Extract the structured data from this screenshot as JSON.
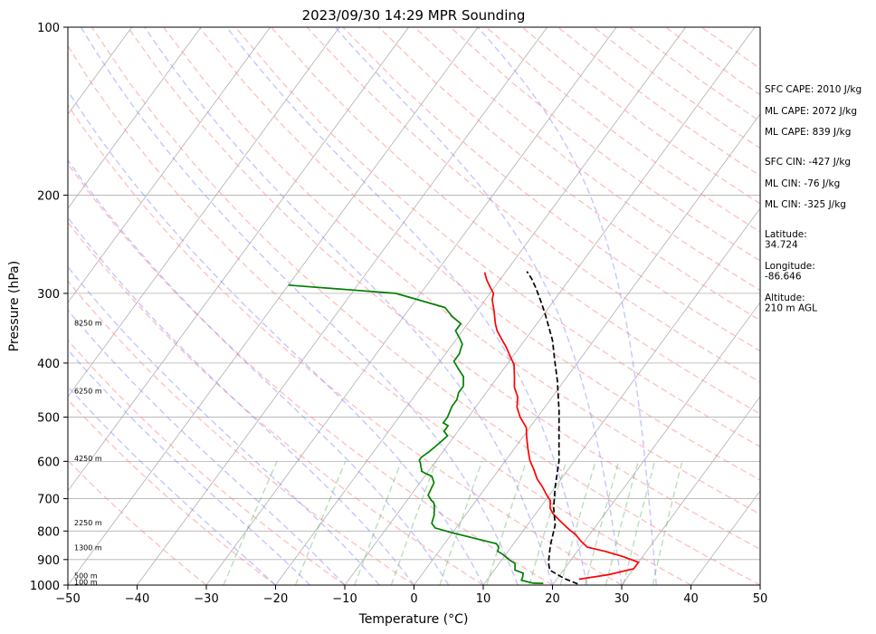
{
  "chart_data": {
    "type": "line",
    "title": "2023/09/30 14:29 MPR Sounding",
    "xlabel": "Temperature (°C)",
    "ylabel": "Pressure (hPa)",
    "xlim": [
      -50,
      50
    ],
    "ylim": [
      1000,
      100
    ],
    "y_scale": "log",
    "skew": "skew-T log-P",
    "x_ticks": [
      "−50",
      "−40",
      "−30",
      "−20",
      "−10",
      "0",
      "10",
      "20",
      "30",
      "40",
      "50"
    ],
    "y_ticks": [
      "100",
      "200",
      "300",
      "400",
      "500",
      "600",
      "700",
      "800",
      "900",
      "1000"
    ],
    "height_labels": [
      {
        "p": 990,
        "label": "100 m"
      },
      {
        "p": 965,
        "label": "500 m"
      },
      {
        "p": 860,
        "label": "1300 m"
      },
      {
        "p": 775,
        "label": "2250 m"
      },
      {
        "p": 595,
        "label": "4250 m"
      },
      {
        "p": 450,
        "label": "6250 m"
      },
      {
        "p": 340,
        "label": "8250 m"
      }
    ],
    "annotations": [
      {
        "text": "SFC CAPE: 2010 J/kg"
      },
      {
        "text": "ML CAPE: 2072 J/kg"
      },
      {
        "text": "ML CAPE: 839 J/kg"
      },
      {
        "text": "SFC CIN: -427 J/kg"
      },
      {
        "text": "ML CIN: -76 J/kg"
      },
      {
        "text": "ML CIN: -325 J/kg"
      },
      {
        "text": "Latitude:\n34.724"
      },
      {
        "text": "Longitude:\n-86.646"
      },
      {
        "text": "Altitude:\n210 m AGL"
      }
    ],
    "series": [
      {
        "name": "",
        "color": "#ff0000",
        "style": "solid",
        "points": [
          [
            23.2,
            976
          ],
          [
            27,
            958
          ],
          [
            30,
            935
          ],
          [
            30,
            910
          ],
          [
            27,
            888
          ],
          [
            24,
            870
          ],
          [
            21,
            855
          ],
          [
            19.5,
            835
          ],
          [
            18,
            812
          ],
          [
            16.5,
            795
          ],
          [
            14.5,
            770
          ],
          [
            12.5,
            745
          ],
          [
            11.5,
            728
          ],
          [
            10.7,
            705
          ],
          [
            9.5,
            688
          ],
          [
            8,
            665
          ],
          [
            6.5,
            645
          ],
          [
            5,
            620
          ],
          [
            3.5,
            598
          ],
          [
            2,
            570
          ],
          [
            0.5,
            542
          ],
          [
            -0.5,
            522
          ],
          [
            -2.5,
            500
          ],
          [
            -4,
            480
          ],
          [
            -5,
            460
          ],
          [
            -6.5,
            442
          ],
          [
            -7.5,
            425
          ],
          [
            -9,
            402
          ],
          [
            -10.5,
            388
          ],
          [
            -12,
            374
          ],
          [
            -13.5,
            362
          ],
          [
            -15,
            350
          ],
          [
            -16,
            340
          ],
          [
            -17.5,
            323
          ],
          [
            -19,
            308
          ],
          [
            -19.5,
            300
          ],
          [
            -21,
            290
          ],
          [
            -22,
            283
          ],
          [
            -23,
            275
          ]
        ]
      },
      {
        "name": "",
        "color": "#008000",
        "style": "solid",
        "points": [
          [
            18.5,
            993
          ],
          [
            17,
            992
          ],
          [
            15,
            980
          ],
          [
            14.8,
            965
          ],
          [
            14.5,
            952
          ],
          [
            13,
            940
          ],
          [
            12.3,
            915
          ],
          [
            11,
            900
          ],
          [
            9.5,
            880
          ],
          [
            8.5,
            870
          ],
          [
            8.2,
            855
          ],
          [
            7.5,
            843
          ],
          [
            6.5,
            838
          ],
          [
            0,
            806
          ],
          [
            -3,
            790
          ],
          [
            -4,
            775
          ],
          [
            -4.5,
            750
          ],
          [
            -5.5,
            720
          ],
          [
            -6,
            710
          ],
          [
            -6.5,
            705
          ],
          [
            -7.5,
            690
          ],
          [
            -8,
            655
          ],
          [
            -9,
            638
          ],
          [
            -10,
            632
          ],
          [
            -11,
            625
          ],
          [
            -11.2,
            620
          ],
          [
            -11.5,
            615
          ],
          [
            -12,
            605
          ],
          [
            -12.5,
            597
          ],
          [
            -12.5,
            590
          ],
          [
            -12,
            577
          ],
          [
            -11.5,
            560
          ],
          [
            -11,
            540
          ],
          [
            -12,
            530
          ],
          [
            -12,
            518
          ],
          [
            -13,
            512
          ],
          [
            -13,
            500
          ],
          [
            -13.5,
            478
          ],
          [
            -13.5,
            465
          ],
          [
            -14,
            452
          ],
          [
            -14,
            440
          ],
          [
            -15,
            423
          ],
          [
            -16.5,
            410
          ],
          [
            -18,
            397
          ],
          [
            -18,
            385
          ],
          [
            -18.3,
            378
          ],
          [
            -18.6,
            370
          ],
          [
            -19.5,
            362
          ],
          [
            -21,
            350
          ],
          [
            -21,
            340
          ],
          [
            -23,
            330
          ],
          [
            -25,
            318
          ],
          [
            -33.6,
            300
          ],
          [
            -50,
            290
          ]
        ]
      },
      {
        "name": "",
        "color": "#000000",
        "style": "dashed",
        "points": [
          [
            23.5,
            995
          ],
          [
            21,
            973
          ],
          [
            18,
            940
          ],
          [
            17,
            910
          ],
          [
            15.5,
            850
          ],
          [
            14,
            780
          ],
          [
            12,
            728
          ],
          [
            10,
            668
          ],
          [
            7.8,
            600
          ],
          [
            5,
            538
          ],
          [
            2.5,
            488
          ],
          [
            -1,
            430
          ],
          [
            -3.5,
            396
          ],
          [
            -6,
            364
          ],
          [
            -8,
            344
          ],
          [
            -9.8,
            327
          ],
          [
            -11.8,
            310
          ],
          [
            -14,
            293
          ],
          [
            -15.6,
            282
          ],
          [
            -17,
            274
          ]
        ]
      }
    ],
    "background": {
      "isotherms": "grey",
      "isobars": "grey",
      "dry_adiabats": "red dashed",
      "moist_adiabats": "blue dashed",
      "mixing_ratio": "green dashed"
    },
    "grid": true
  }
}
